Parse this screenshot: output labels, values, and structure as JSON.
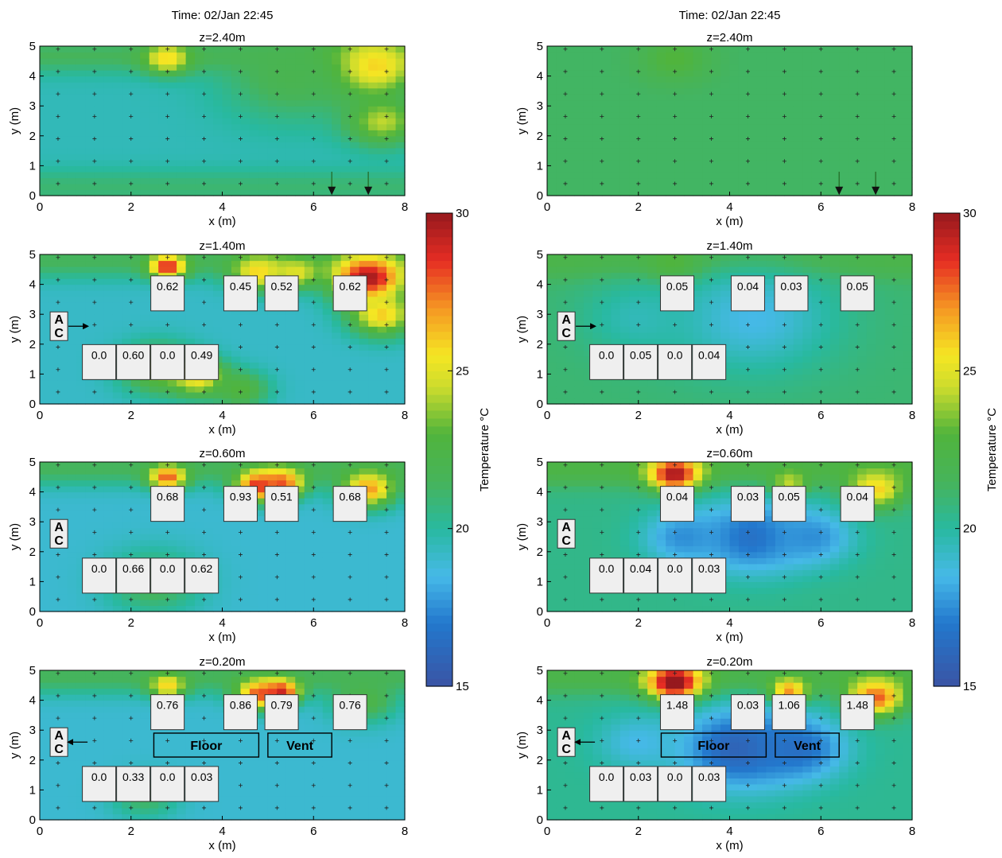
{
  "chart_data": {
    "type": "heatmap",
    "colorbar": {
      "label": "Temperature °C",
      "range": [
        15,
        30
      ],
      "ticks": [
        "15",
        "20",
        "25",
        "30"
      ]
    },
    "axes": {
      "xlabel": "x (m)",
      "ylabel": "y (m)",
      "xlim": [
        0,
        8
      ],
      "ylim": [
        0,
        5
      ],
      "xticks": [
        "0",
        "2",
        "4",
        "6",
        "8"
      ],
      "yticks": [
        "0",
        "1",
        "2",
        "3",
        "4",
        "5"
      ]
    },
    "columns": [
      {
        "time_label": "Time: 02/Jan 22:45",
        "panels": [
          {
            "z_label": "z=2.40m",
            "base_temp": 19.5,
            "gradient": [
              {
                "y": 0.3,
                "t": 21.0
              },
              {
                "y": 4.7,
                "t": 21.5
              }
            ],
            "hotspots": [
              {
                "x": 2.8,
                "y": 4.6,
                "t": 26,
                "r": 0.5
              },
              {
                "x": 7.2,
                "y": 4.3,
                "t": 27,
                "r": 1.0
              },
              {
                "x": 7.5,
                "y": 2.5,
                "t": 24.5,
                "r": 0.8
              },
              {
                "x": 5.5,
                "y": 4.0,
                "t": 22,
                "r": 1.5
              }
            ],
            "downward_arrows_x": [
              6.4,
              7.2
            ],
            "ac": null,
            "sensors": [],
            "labels": []
          },
          {
            "z_label": "z=1.40m",
            "base_temp": 19.2,
            "gradient": [
              {
                "y": 4.8,
                "t": 21.5
              }
            ],
            "hotspots": [
              {
                "x": 2.8,
                "y": 4.6,
                "t": 29,
                "r": 0.4
              },
              {
                "x": 4.8,
                "y": 4.4,
                "t": 26,
                "r": 0.6
              },
              {
                "x": 5.6,
                "y": 4.4,
                "t": 25,
                "r": 0.5
              },
              {
                "x": 7.2,
                "y": 4.2,
                "t": 30,
                "r": 0.8
              },
              {
                "x": 7.5,
                "y": 3.0,
                "t": 26,
                "r": 0.7
              },
              {
                "x": 2.6,
                "y": 1.2,
                "t": 24,
                "r": 0.8
              },
              {
                "x": 3.5,
                "y": 0.9,
                "t": 26,
                "r": 0.6
              },
              {
                "x": 4.4,
                "y": 0.5,
                "t": 23,
                "r": 0.6
              }
            ],
            "ac": {
              "x": 0.42,
              "y": 2.6,
              "top": "A",
              "bottom": "C",
              "arrow": "right"
            },
            "sensors": [
              {
                "x": 2.8,
                "y": 3.7,
                "value": "0.62"
              },
              {
                "x": 4.4,
                "y": 3.7,
                "value": "0.45"
              },
              {
                "x": 5.3,
                "y": 3.7,
                "value": "0.52"
              },
              {
                "x": 6.8,
                "y": 3.7,
                "value": "0.62"
              },
              {
                "x": 1.3,
                "y": 1.4,
                "value": "0.0"
              },
              {
                "x": 2.05,
                "y": 1.4,
                "value": "0.60"
              },
              {
                "x": 2.8,
                "y": 1.4,
                "value": "0.0"
              },
              {
                "x": 3.55,
                "y": 1.4,
                "value": "0.49"
              }
            ],
            "labels": []
          },
          {
            "z_label": "z=0.60m",
            "base_temp": 19.0,
            "gradient": [
              {
                "y": 4.8,
                "t": 21.5
              }
            ],
            "hotspots": [
              {
                "x": 2.8,
                "y": 4.5,
                "t": 28,
                "r": 0.4
              },
              {
                "x": 4.8,
                "y": 4.2,
                "t": 29,
                "r": 0.5
              },
              {
                "x": 5.3,
                "y": 4.3,
                "t": 28,
                "r": 0.5
              },
              {
                "x": 7.2,
                "y": 4.1,
                "t": 27,
                "r": 0.6
              },
              {
                "x": 2.5,
                "y": 1.0,
                "t": 22,
                "r": 1.0
              }
            ],
            "ac": {
              "x": 0.42,
              "y": 2.6,
              "top": "A",
              "bottom": "C",
              "arrow": null
            },
            "sensors": [
              {
                "x": 2.8,
                "y": 3.6,
                "value": "0.68"
              },
              {
                "x": 4.4,
                "y": 3.6,
                "value": "0.93"
              },
              {
                "x": 5.3,
                "y": 3.6,
                "value": "0.51"
              },
              {
                "x": 6.8,
                "y": 3.6,
                "value": "0.68"
              },
              {
                "x": 1.3,
                "y": 1.2,
                "value": "0.0"
              },
              {
                "x": 2.05,
                "y": 1.2,
                "value": "0.66"
              },
              {
                "x": 2.8,
                "y": 1.2,
                "value": "0.0"
              },
              {
                "x": 3.55,
                "y": 1.2,
                "value": "0.62"
              }
            ],
            "labels": []
          },
          {
            "z_label": "z=0.20m",
            "base_temp": 19.0,
            "gradient": [
              {
                "y": 4.8,
                "t": 21.5
              }
            ],
            "hotspots": [
              {
                "x": 2.8,
                "y": 4.5,
                "t": 26,
                "r": 0.4
              },
              {
                "x": 4.8,
                "y": 4.2,
                "t": 28,
                "r": 0.5
              },
              {
                "x": 5.3,
                "y": 4.3,
                "t": 29,
                "r": 0.4
              },
              {
                "x": 7.1,
                "y": 4.0,
                "t": 22.5,
                "r": 0.7
              },
              {
                "x": 2.3,
                "y": 0.8,
                "t": 21.5,
                "r": 0.7
              }
            ],
            "ac": {
              "x": 0.42,
              "y": 2.6,
              "top": "A",
              "bottom": "C",
              "arrow": "left"
            },
            "sensors": [
              {
                "x": 2.8,
                "y": 3.6,
                "value": "0.76"
              },
              {
                "x": 4.4,
                "y": 3.6,
                "value": "0.86"
              },
              {
                "x": 5.3,
                "y": 3.6,
                "value": "0.79"
              },
              {
                "x": 6.8,
                "y": 3.6,
                "value": "0.76"
              },
              {
                "x": 1.3,
                "y": 1.2,
                "value": "0.0"
              },
              {
                "x": 2.05,
                "y": 1.2,
                "value": "0.33"
              },
              {
                "x": 2.8,
                "y": 1.2,
                "value": "0.0"
              },
              {
                "x": 3.55,
                "y": 1.2,
                "value": "0.03"
              }
            ],
            "labels": [
              {
                "text": "Floor",
                "x0": 2.5,
                "x1": 4.8,
                "y0": 2.1,
                "y1": 2.9
              },
              {
                "text": "Vent",
                "x0": 5.0,
                "x1": 6.4,
                "y0": 2.1,
                "y1": 2.9
              }
            ]
          }
        ]
      },
      {
        "time_label": "Time: 02/Jan 22:45",
        "panels": [
          {
            "z_label": "z=2.40m",
            "base_temp": 21.3,
            "gradient": [],
            "hotspots": [
              {
                "x": 2.8,
                "y": 4.6,
                "t": 23,
                "r": 0.7
              }
            ],
            "downward_arrows_x": [
              6.4,
              7.2
            ],
            "ac": null,
            "sensors": [],
            "labels": []
          },
          {
            "z_label": "z=1.40m",
            "base_temp": 21.0,
            "gradient": [
              {
                "y": 4.8,
                "t": 22.3
              }
            ],
            "hotspots": [
              {
                "x": 2.8,
                "y": 4.6,
                "t": 24,
                "r": 0.6
              },
              {
                "x": 4.5,
                "y": 2.9,
                "t": 18.5,
                "r": 1.8
              },
              {
                "x": 2.0,
                "y": 2.9,
                "t": 19.5,
                "r": 1.2
              }
            ],
            "ac": {
              "x": 0.42,
              "y": 2.6,
              "top": "A",
              "bottom": "C",
              "arrow": "right"
            },
            "sensors": [
              {
                "x": 2.85,
                "y": 3.7,
                "value": "0.05"
              },
              {
                "x": 4.4,
                "y": 3.7,
                "value": "0.04"
              },
              {
                "x": 5.35,
                "y": 3.7,
                "value": "0.03"
              },
              {
                "x": 6.8,
                "y": 3.7,
                "value": "0.05"
              },
              {
                "x": 1.3,
                "y": 1.4,
                "value": "0.0"
              },
              {
                "x": 2.05,
                "y": 1.4,
                "value": "0.05"
              },
              {
                "x": 2.8,
                "y": 1.4,
                "value": "0.0"
              },
              {
                "x": 3.55,
                "y": 1.4,
                "value": "0.04"
              }
            ],
            "labels": []
          },
          {
            "z_label": "z=0.60m",
            "base_temp": 20.5,
            "gradient": [
              {
                "y": 4.8,
                "t": 22.5
              }
            ],
            "hotspots": [
              {
                "x": 2.8,
                "y": 4.6,
                "t": 30,
                "r": 0.55
              },
              {
                "x": 5.3,
                "y": 4.3,
                "t": 25,
                "r": 0.4
              },
              {
                "x": 7.2,
                "y": 4.1,
                "t": 26,
                "r": 0.6
              },
              {
                "x": 4.5,
                "y": 2.5,
                "t": 16.5,
                "r": 1.2
              },
              {
                "x": 3.0,
                "y": 2.5,
                "t": 17.5,
                "r": 0.9
              },
              {
                "x": 5.8,
                "y": 2.5,
                "t": 17.5,
                "r": 0.9
              }
            ],
            "ac": {
              "x": 0.42,
              "y": 2.6,
              "top": "A",
              "bottom": "C",
              "arrow": null
            },
            "sensors": [
              {
                "x": 2.85,
                "y": 3.6,
                "value": "0.04"
              },
              {
                "x": 4.4,
                "y": 3.6,
                "value": "0.03"
              },
              {
                "x": 5.3,
                "y": 3.6,
                "value": "0.05"
              },
              {
                "x": 6.8,
                "y": 3.6,
                "value": "0.04"
              },
              {
                "x": 1.3,
                "y": 1.2,
                "value": "0.0"
              },
              {
                "x": 2.05,
                "y": 1.2,
                "value": "0.04"
              },
              {
                "x": 2.8,
                "y": 1.2,
                "value": "0.0"
              },
              {
                "x": 3.55,
                "y": 1.2,
                "value": "0.03"
              }
            ],
            "labels": []
          },
          {
            "z_label": "z=0.20m",
            "base_temp": 20.3,
            "gradient": [
              {
                "y": 4.8,
                "t": 22.3
              }
            ],
            "hotspots": [
              {
                "x": 2.8,
                "y": 4.6,
                "t": 31,
                "r": 0.6
              },
              {
                "x": 5.3,
                "y": 4.3,
                "t": 28,
                "r": 0.4
              },
              {
                "x": 7.2,
                "y": 4.1,
                "t": 28,
                "r": 0.6
              },
              {
                "x": 4.2,
                "y": 2.4,
                "t": 15.8,
                "r": 1.3
              },
              {
                "x": 5.5,
                "y": 2.4,
                "t": 16.5,
                "r": 1.0
              },
              {
                "x": 2.0,
                "y": 2.6,
                "t": 18.5,
                "r": 0.9
              }
            ],
            "ac": {
              "x": 0.42,
              "y": 2.6,
              "top": "A",
              "bottom": "C",
              "arrow": "left"
            },
            "sensors": [
              {
                "x": 2.85,
                "y": 3.6,
                "value": "1.48"
              },
              {
                "x": 4.4,
                "y": 3.6,
                "value": "0.03"
              },
              {
                "x": 5.3,
                "y": 3.6,
                "value": "1.06"
              },
              {
                "x": 6.8,
                "y": 3.6,
                "value": "1.48"
              },
              {
                "x": 1.3,
                "y": 1.2,
                "value": "0.0"
              },
              {
                "x": 2.05,
                "y": 1.2,
                "value": "0.03"
              },
              {
                "x": 2.8,
                "y": 1.2,
                "value": "0.0"
              },
              {
                "x": 3.55,
                "y": 1.2,
                "value": "0.03"
              }
            ],
            "labels": [
              {
                "text": "Floor",
                "x0": 2.5,
                "x1": 4.8,
                "y0": 2.1,
                "y1": 2.9
              },
              {
                "text": "Vent",
                "x0": 5.0,
                "x1": 6.4,
                "y0": 2.1,
                "y1": 2.9
              }
            ]
          }
        ]
      }
    ]
  }
}
